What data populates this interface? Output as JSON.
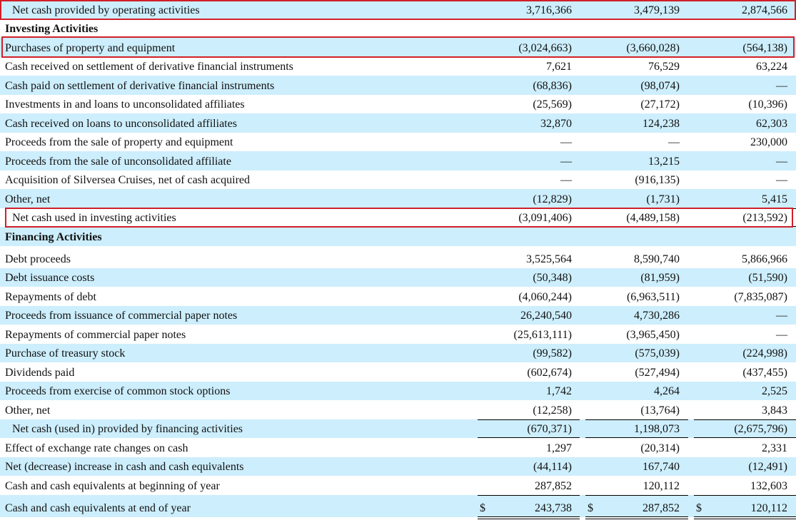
{
  "rows": [
    {
      "label": "Net cash provided by operating activities",
      "v1": "3,716,366",
      "v2": "3,479,139",
      "v3": "2,874,566",
      "indent": true,
      "shade": true,
      "line_above": false,
      "line_below": true
    },
    {
      "label": "Investing Activities",
      "bold": true,
      "shade": false
    },
    {
      "label": "Purchases of property and equipment",
      "v1": "(3,024,663)",
      "v2": "(3,660,028)",
      "v3": "(564,138)",
      "shade": true
    },
    {
      "label": "Cash received on settlement of derivative financial instruments",
      "v1": "7,621",
      "v2": "76,529",
      "v3": "63,224",
      "shade": false
    },
    {
      "label": "Cash paid on settlement of derivative financial instruments",
      "v1": "(68,836)",
      "v2": "(98,074)",
      "v3": "—",
      "shade": true
    },
    {
      "label": "Investments in and loans to unconsolidated affiliates",
      "v1": "(25,569)",
      "v2": "(27,172)",
      "v3": "(10,396)",
      "shade": false
    },
    {
      "label": "Cash received on loans to unconsolidated affiliates",
      "v1": "32,870",
      "v2": "124,238",
      "v3": "62,303",
      "shade": true
    },
    {
      "label": "Proceeds from the sale of property and equipment",
      "v1": "—",
      "v2": "—",
      "v3": "230,000",
      "shade": false
    },
    {
      "label": "Proceeds from the sale of unconsolidated affiliate",
      "v1": "—",
      "v2": "13,215",
      "v3": "—",
      "shade": true
    },
    {
      "label": "Acquisition of Silversea Cruises, net of cash acquired",
      "v1": "—",
      "v2": "(916,135)",
      "v3": "—",
      "shade": false
    },
    {
      "label": "Other, net",
      "v1": "(12,829)",
      "v2": "(1,731)",
      "v3": "5,415",
      "shade": true
    },
    {
      "label": "Net cash used in investing activities",
      "v1": "(3,091,406)",
      "v2": "(4,489,158)",
      "v3": "(213,592)",
      "indent": true,
      "shade": false,
      "line_above": true,
      "line_below": true
    },
    {
      "label": "Financing Activities",
      "bold": true,
      "shade": true
    },
    {
      "label": "Debt proceeds",
      "v1": "3,525,564",
      "v2": "8,590,740",
      "v3": "5,866,966",
      "shade": false,
      "tall": true
    },
    {
      "label": "Debt issuance costs",
      "v1": "(50,348)",
      "v2": "(81,959)",
      "v3": "(51,590)",
      "shade": true
    },
    {
      "label": "Repayments of debt",
      "v1": "(4,060,244)",
      "v2": "(6,963,511)",
      "v3": "(7,835,087)",
      "shade": false
    },
    {
      "label": "Proceeds from issuance of commercial paper notes",
      "v1": "26,240,540",
      "v2": "4,730,286",
      "v3": "—",
      "shade": true
    },
    {
      "label": "Repayments of commercial paper notes",
      "v1": "(25,613,111)",
      "v2": "(3,965,450)",
      "v3": "—",
      "shade": false
    },
    {
      "label": "Purchase of treasury stock",
      "v1": "(99,582)",
      "v2": "(575,039)",
      "v3": "(224,998)",
      "shade": true
    },
    {
      "label": "Dividends paid",
      "v1": "(602,674)",
      "v2": "(527,494)",
      "v3": "(437,455)",
      "shade": false
    },
    {
      "label": "Proceeds from exercise of common stock options",
      "v1": "1,742",
      "v2": "4,264",
      "v3": "2,525",
      "shade": true
    },
    {
      "label": "Other, net",
      "v1": "(12,258)",
      "v2": "(13,764)",
      "v3": "3,843",
      "shade": false
    },
    {
      "label": "Net cash (used in) provided by financing activities",
      "v1": "(670,371)",
      "v2": "1,198,073",
      "v3": "(2,675,796)",
      "indent": true,
      "shade": true,
      "line_above": true,
      "line_below": true
    },
    {
      "label": "Effect of exchange rate changes on cash",
      "v1": "1,297",
      "v2": "(20,314)",
      "v3": "2,331",
      "shade": false
    },
    {
      "label": "Net (decrease) increase in cash and cash equivalents",
      "v1": "(44,114)",
      "v2": "167,740",
      "v3": "(12,491)",
      "shade": true
    },
    {
      "label": "Cash and cash equivalents at beginning of year",
      "v1": "287,852",
      "v2": "120,112",
      "v3": "132,603",
      "shade": false
    },
    {
      "label": "Cash and cash equivalents at end of year",
      "v1": "243,738",
      "v2": "287,852",
      "v3": "120,112",
      "shade": true,
      "dollar": "$",
      "line_above": true,
      "double_below": true,
      "tall": true
    }
  ],
  "highlight_color": "#d0202a",
  "shade_color": "#cdeefc"
}
